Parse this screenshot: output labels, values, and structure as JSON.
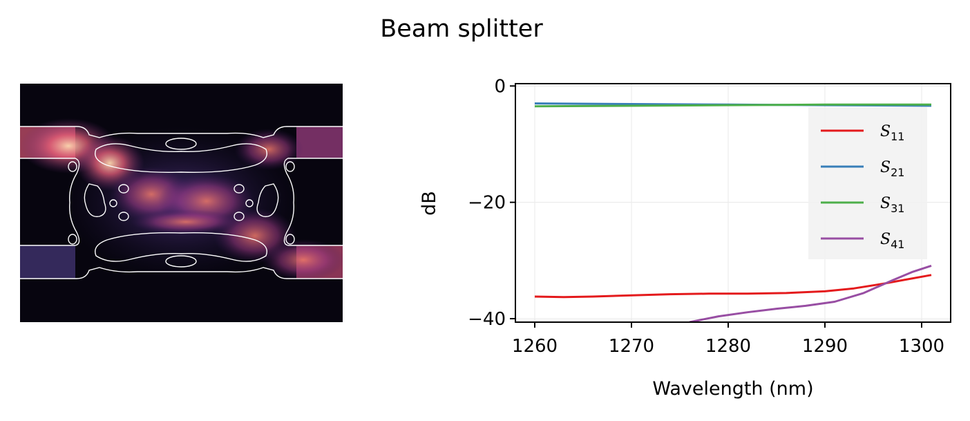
{
  "figure": {
    "title": "Beam splitter"
  },
  "image_panel": {
    "type": "heatmap"
  },
  "chart_data": {
    "type": "line",
    "xlabel": "Wavelength (nm)",
    "ylabel": "dB",
    "xlim": [
      1258,
      1303
    ],
    "ylim": [
      -40.6,
      0.4
    ],
    "xticks": [
      1260,
      1270,
      1280,
      1290,
      1300
    ],
    "xtick_labels": [
      "1260",
      "1270",
      "1280",
      "1290",
      "1300"
    ],
    "yticks": [
      0,
      -20,
      -40
    ],
    "ytick_labels": [
      "0",
      "−20",
      "−40"
    ],
    "grid": true,
    "legend_position": "upper right",
    "series": [
      {
        "name": "S11",
        "label_base": "S",
        "label_sub": "11",
        "color": "#e41a1c",
        "x": [
          1260,
          1263,
          1266,
          1270,
          1274,
          1278,
          1282,
          1286,
          1290,
          1293,
          1296,
          1298,
          1301
        ],
        "y": [
          -36.2,
          -36.3,
          -36.2,
          -36.0,
          -35.8,
          -35.7,
          -35.7,
          -35.6,
          -35.3,
          -34.8,
          -34.0,
          -33.4,
          -32.5
        ]
      },
      {
        "name": "S21",
        "label_base": "S",
        "label_sub": "21",
        "color": "#377eb8",
        "x": [
          1260,
          1270,
          1280,
          1290,
          1301
        ],
        "y": [
          -3.0,
          -3.1,
          -3.2,
          -3.3,
          -3.4
        ]
      },
      {
        "name": "S31",
        "label_base": "S",
        "label_sub": "31",
        "color": "#4daf4a",
        "x": [
          1260,
          1270,
          1280,
          1290,
          1301
        ],
        "y": [
          -3.5,
          -3.4,
          -3.3,
          -3.2,
          -3.2
        ]
      },
      {
        "name": "S41",
        "label_base": "S",
        "label_sub": "41",
        "color": "#984ea3",
        "x": [
          1276,
          1279,
          1282,
          1285,
          1288,
          1291,
          1294,
          1297,
          1299,
          1301
        ],
        "y": [
          -40.6,
          -39.6,
          -38.9,
          -38.3,
          -37.8,
          -37.1,
          -35.6,
          -33.4,
          -32.0,
          -30.9
        ]
      }
    ]
  }
}
